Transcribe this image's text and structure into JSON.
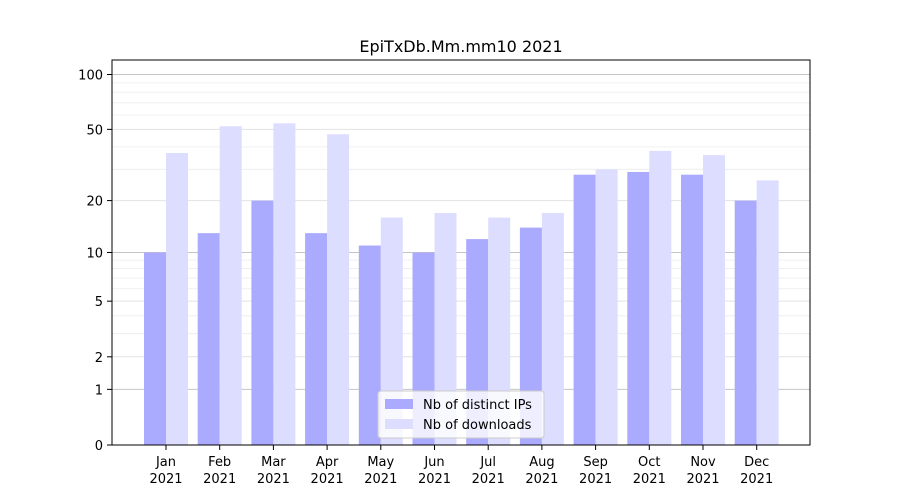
{
  "chart_data": {
    "type": "bar",
    "title": "EpiTxDb.Mm.mm10 2021",
    "xlabel": "",
    "ylabel": "",
    "yscale": "log1p",
    "ylim": [
      0,
      120
    ],
    "yticks": [
      0,
      1,
      2,
      5,
      10,
      20,
      50,
      100
    ],
    "grid": true,
    "legend_position": "bottom-center",
    "categories": [
      [
        "Jan",
        "2021"
      ],
      [
        "Feb",
        "2021"
      ],
      [
        "Mar",
        "2021"
      ],
      [
        "Apr",
        "2021"
      ],
      [
        "May",
        "2021"
      ],
      [
        "Jun",
        "2021"
      ],
      [
        "Jul",
        "2021"
      ],
      [
        "Aug",
        "2021"
      ],
      [
        "Sep",
        "2021"
      ],
      [
        "Oct",
        "2021"
      ],
      [
        "Nov",
        "2021"
      ],
      [
        "Dec",
        "2021"
      ]
    ],
    "series": [
      {
        "name": "Nb of distinct IPs",
        "color": "#aaaaff",
        "values": [
          10,
          13,
          20,
          13,
          11,
          10,
          12,
          14,
          28,
          29,
          28,
          20
        ]
      },
      {
        "name": "Nb of downloads",
        "color": "#ddddff",
        "values": [
          37,
          52,
          54,
          47,
          16,
          17,
          16,
          17,
          30,
          38,
          36,
          26
        ]
      }
    ]
  }
}
